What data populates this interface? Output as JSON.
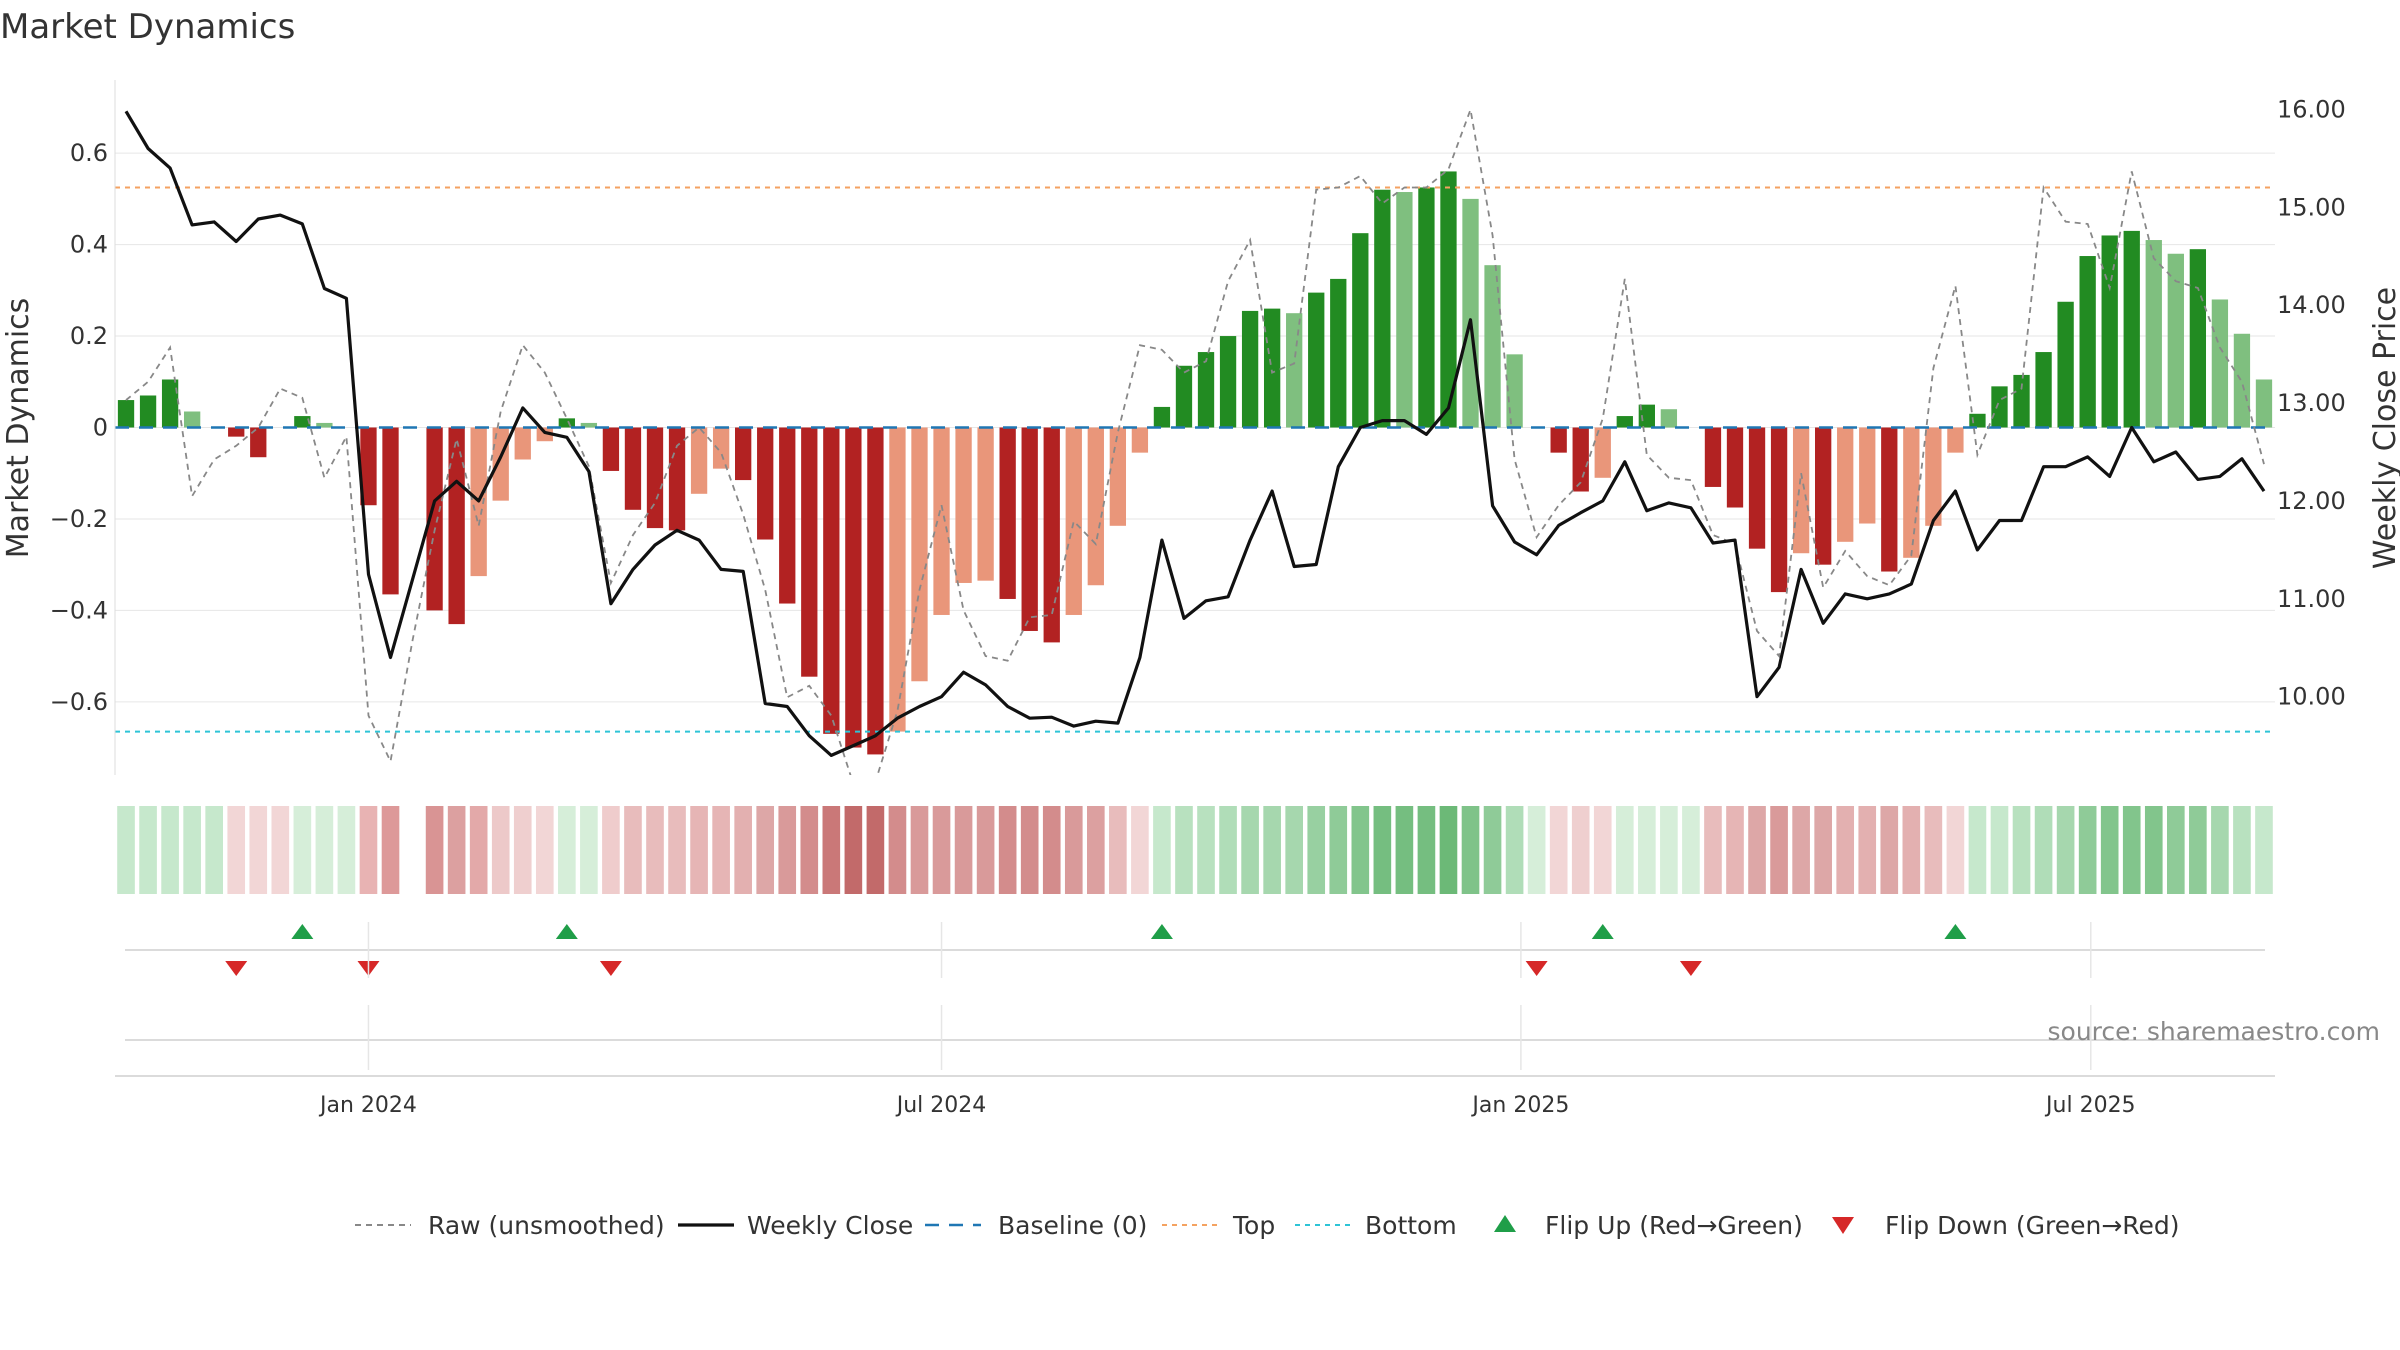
{
  "chart_data": {
    "type": "bar",
    "title": "Market Dynamics",
    "ylabel_left": "Market Dynamics",
    "ylabel_right": "Weekly Close Price",
    "ylim_left": [
      -0.76,
      0.76
    ],
    "ylim_right": [
      9.2,
      16.3
    ],
    "left_ticks": [
      0.6,
      0.4,
      0.2,
      0,
      -0.2,
      -0.4,
      -0.6
    ],
    "left_tick_labels": [
      "0.6",
      "0.4",
      "0.2",
      "0",
      "−0.2",
      "−0.4",
      "−0.6"
    ],
    "right_ticks": [
      16,
      15,
      14,
      13,
      12,
      11,
      10
    ],
    "right_tick_labels": [
      "16.00",
      "15.00",
      "14.00",
      "13.00",
      "12.00",
      "11.00",
      "10.00"
    ],
    "date_axis": {
      "start": "2023-10-16",
      "end": "2025-09-15",
      "ticks": [
        {
          "date": "2024-01-01",
          "label": "Jan 2024"
        },
        {
          "date": "2024-07-01",
          "label": "Jul 2024"
        },
        {
          "date": "2025-01-01",
          "label": "Jan 2025"
        },
        {
          "date": "2025-07-01",
          "label": "Jul 2025"
        }
      ]
    },
    "first_week": "2023-10-16",
    "top_line": 0.525,
    "bottom_line": -0.665,
    "baseline": 0,
    "bars": [
      0.06,
      0.07,
      0.105,
      0.035,
      0.0,
      -0.02,
      -0.065,
      0.0,
      0.025,
      0.01,
      0.0,
      -0.17,
      -0.365,
      0.0,
      -0.4,
      -0.43,
      -0.325,
      -0.16,
      -0.07,
      -0.03,
      0.02,
      0.01,
      -0.095,
      -0.18,
      -0.22,
      -0.225,
      -0.145,
      -0.09,
      -0.115,
      -0.245,
      -0.385,
      -0.545,
      -0.67,
      -0.7,
      -0.715,
      -0.665,
      -0.555,
      -0.41,
      -0.34,
      -0.335,
      -0.375,
      -0.445,
      -0.47,
      -0.41,
      -0.345,
      -0.215,
      -0.055,
      0.045,
      0.135,
      0.165,
      0.2,
      0.255,
      0.26,
      0.25,
      0.295,
      0.325,
      0.425,
      0.52,
      0.515,
      0.525,
      0.56,
      0.5,
      0.355,
      0.16,
      0.0,
      -0.055,
      -0.14,
      -0.11,
      0.025,
      0.05,
      0.04,
      0.0,
      -0.13,
      -0.175,
      -0.265,
      -0.36,
      -0.275,
      -0.3,
      -0.25,
      -0.21,
      -0.315,
      -0.285,
      -0.215,
      -0.055,
      0.03,
      0.09,
      0.115,
      0.165,
      0.275,
      0.375,
      0.42,
      0.43,
      0.41,
      0.38,
      0.39,
      0.28,
      0.205,
      0.105
    ],
    "bar_colors": [
      "#228B22",
      "#228B22",
      "#228B22",
      "#7FBF7F",
      "#7FBF7F",
      "#B22222",
      "#B22222",
      "#7FBF7F",
      "#228B22",
      "#7FBF7F",
      "#B22222",
      "#B22222",
      "#B22222",
      "#B22222",
      "#B22222",
      "#B22222",
      "#E9967A",
      "#E9967A",
      "#E9967A",
      "#E9967A",
      "#228B22",
      "#7FBF7F",
      "#B22222",
      "#B22222",
      "#B22222",
      "#B22222",
      "#E9967A",
      "#E9967A",
      "#B22222",
      "#B22222",
      "#B22222",
      "#B22222",
      "#B22222",
      "#B22222",
      "#B22222",
      "#E9967A",
      "#E9967A",
      "#E9967A",
      "#E9967A",
      "#E9967A",
      "#B22222",
      "#B22222",
      "#B22222",
      "#E9967A",
      "#E9967A",
      "#E9967A",
      "#E9967A",
      "#228B22",
      "#228B22",
      "#228B22",
      "#228B22",
      "#228B22",
      "#228B22",
      "#7FBF7F",
      "#228B22",
      "#228B22",
      "#228B22",
      "#228B22",
      "#7FBF7F",
      "#228B22",
      "#228B22",
      "#7FBF7F",
      "#7FBF7F",
      "#7FBF7F",
      "#7FBF7F",
      "#B22222",
      "#B22222",
      "#E9967A",
      "#228B22",
      "#228B22",
      "#7FBF7F",
      "#7FBF7F",
      "#B22222",
      "#B22222",
      "#B22222",
      "#B22222",
      "#E9967A",
      "#B22222",
      "#E9967A",
      "#E9967A",
      "#B22222",
      "#E9967A",
      "#E9967A",
      "#E9967A",
      "#228B22",
      "#228B22",
      "#228B22",
      "#228B22",
      "#228B22",
      "#228B22",
      "#228B22",
      "#228B22",
      "#7FBF7F",
      "#7FBF7F",
      "#228B22",
      "#7FBF7F",
      "#7FBF7F",
      "#7FBF7F"
    ],
    "heat_colors": [
      "#c6e8cc",
      "#c6e8cc",
      "#c6e8cc",
      "#c6e8cc",
      "#c6e8cc",
      "#f2d6d6",
      "#f2d6d6",
      "#f2d6d6",
      "#d6eed9",
      "#d6eed9",
      "#d6eed9",
      "#e8b3b3",
      "#dd9999",
      "#ffffff",
      "#d99494",
      "#dca0a0",
      "#e3a9a9",
      "#edc9c9",
      "#efcfcf",
      "#f2d6d6",
      "#d6eed9",
      "#d6eed9",
      "#efcccc",
      "#e8bcbc",
      "#e8bcbc",
      "#e8bcbc",
      "#e6b5b5",
      "#e6b5b5",
      "#e3b0b0",
      "#dda7a7",
      "#d99a9a",
      "#d38c8c",
      "#ca7878",
      "#c26a6a",
      "#c26a6a",
      "#d38c8c",
      "#d99a9a",
      "#d99a9a",
      "#d99a9a",
      "#d99a9a",
      "#d38c8c",
      "#d38c8c",
      "#d38c8c",
      "#d99a9a",
      "#dca0a0",
      "#e8bcbc",
      "#f2d6d6",
      "#c6e8cc",
      "#b8e1bf",
      "#b8e1bf",
      "#b0ddb8",
      "#a6d7ae",
      "#a6d7ae",
      "#a6d7ae",
      "#98d0a1",
      "#8fcb98",
      "#82c58c",
      "#75be80",
      "#75be80",
      "#75be80",
      "#6cb977",
      "#7fc389",
      "#8fcb98",
      "#b0ddb8",
      "#d6eed9",
      "#f2d6d6",
      "#efcfcf",
      "#f2d6d6",
      "#d6eed9",
      "#d6eed9",
      "#d6eed9",
      "#d6eed9",
      "#e8bcbc",
      "#e6b5b5",
      "#dda7a7",
      "#d99a9a",
      "#dda7a7",
      "#dda7a7",
      "#e3b0b0",
      "#e3b0b0",
      "#dda7a7",
      "#e3b0b0",
      "#e8bcbc",
      "#f2d6d6",
      "#c6e8cc",
      "#c6e8cc",
      "#b8e1bf",
      "#b0ddb8",
      "#a6d7ae",
      "#8fcb98",
      "#82c58c",
      "#82c58c",
      "#82c58c",
      "#8fcb98",
      "#8fcb98",
      "#a6d7ae",
      "#b8e1bf",
      "#c6e8cc"
    ],
    "raw": [
      0.06,
      0.1,
      0.175,
      -0.15,
      -0.07,
      -0.04,
      0.0,
      0.085,
      0.065,
      -0.11,
      -0.02,
      -0.63,
      -0.73,
      -0.465,
      -0.225,
      -0.025,
      -0.215,
      0.035,
      0.18,
      0.12,
      0.02,
      -0.085,
      -0.34,
      -0.235,
      -0.165,
      -0.04,
      0.0,
      -0.055,
      -0.19,
      -0.355,
      -0.59,
      -0.565,
      -0.63,
      -0.78,
      -0.775,
      -0.62,
      -0.355,
      -0.17,
      -0.4,
      -0.5,
      -0.51,
      -0.415,
      -0.41,
      -0.205,
      -0.255,
      -0.01,
      0.18,
      0.17,
      0.12,
      0.145,
      0.32,
      0.41,
      0.12,
      0.14,
      0.52,
      0.525,
      0.55,
      0.49,
      0.525,
      0.525,
      0.565,
      0.695,
      0.42,
      -0.07,
      -0.24,
      -0.17,
      -0.12,
      0.02,
      0.325,
      -0.06,
      -0.11,
      -0.115,
      -0.235,
      -0.255,
      -0.445,
      -0.5,
      -0.1,
      -0.35,
      -0.27,
      -0.325,
      -0.345,
      -0.28,
      0.13,
      0.31,
      -0.06,
      0.06,
      0.085,
      0.525,
      0.45,
      0.445,
      0.305,
      0.56,
      0.37,
      0.32,
      0.305,
      0.175,
      0.1,
      -0.08
    ],
    "close": [
      15.98,
      15.6,
      15.4,
      14.82,
      14.85,
      14.65,
      14.88,
      14.92,
      14.83,
      14.17,
      14.07,
      11.25,
      10.4,
      11.2,
      12.0,
      12.2,
      12.0,
      12.45,
      12.95,
      12.7,
      12.65,
      12.3,
      10.95,
      11.3,
      11.55,
      11.7,
      11.6,
      11.3,
      11.28,
      9.93,
      9.9,
      9.6,
      9.4,
      9.5,
      9.6,
      9.78,
      9.9,
      10.0,
      10.25,
      10.12,
      9.9,
      9.78,
      9.79,
      9.7,
      9.75,
      9.73,
      10.4,
      11.6,
      10.8,
      10.98,
      11.02,
      11.6,
      12.1,
      11.33,
      11.35,
      12.35,
      12.75,
      12.82,
      12.82,
      12.68,
      12.95,
      13.85,
      11.95,
      11.58,
      11.45,
      11.75,
      11.88,
      12.0,
      12.4,
      11.9,
      11.98,
      11.93,
      11.57,
      11.6,
      10.0,
      10.3,
      11.3,
      10.75,
      11.05,
      11.0,
      11.05,
      11.15,
      11.8,
      12.1,
      11.5,
      11.8,
      11.8,
      12.35,
      12.35,
      12.45,
      12.25,
      12.75,
      12.4,
      12.5,
      12.22,
      12.25,
      12.43,
      12.1
    ],
    "flip_up_weeks": [
      8,
      20,
      47,
      67,
      83
    ],
    "flip_down_weeks": [
      5,
      11,
      22,
      64,
      71
    ],
    "series": [
      {
        "name": "Raw (unsmoothed)",
        "color": "#888888"
      },
      {
        "name": "Weekly Close",
        "color": "#111111"
      },
      {
        "name": "Baseline (0)",
        "color": "#1f77b4"
      },
      {
        "name": "Top",
        "color": "#f4a261"
      },
      {
        "name": "Bottom",
        "color": "#2ec4d6"
      },
      {
        "name": "Flip Up (Red→Green)",
        "color": "#1f9e48"
      },
      {
        "name": "Flip Down (Green→Red)",
        "color": "#d62828"
      }
    ],
    "legend_position": "bottom",
    "grid": true
  },
  "source_label": "source: sharemaestro.com"
}
